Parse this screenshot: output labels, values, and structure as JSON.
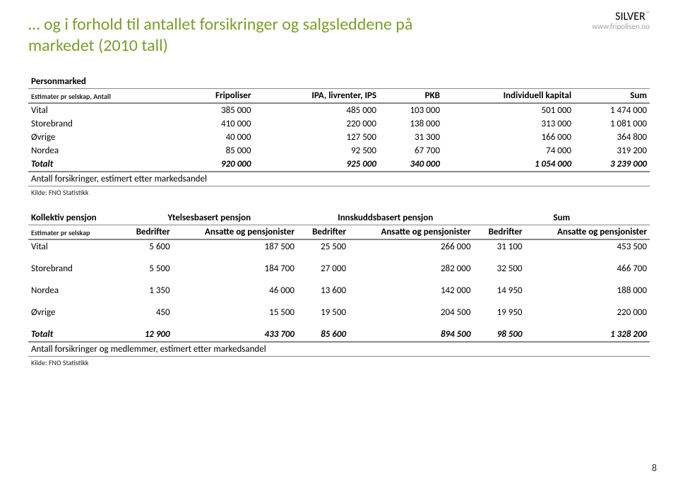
{
  "title": "… og i forhold til antallet forsikringer og salgsleddene på markedet  (2010 tall)",
  "logo": {
    "name": "SILVER",
    "url": "www.fripolisen.no"
  },
  "page_number": "8",
  "table1": {
    "section": "Personmarked",
    "sub": "Estimater pr selskap, Antall",
    "cols": [
      "Fripoliser",
      "IPA, livrenter, IPS",
      "PKB",
      "Individuell kapital",
      "Sum"
    ],
    "rows": [
      {
        "label": "Vital",
        "v": [
          "385 000",
          "485 000",
          "103 000",
          "501 000",
          "1 474 000"
        ]
      },
      {
        "label": "Storebrand",
        "v": [
          "410 000",
          "220 000",
          "138 000",
          "313 000",
          "1 081 000"
        ]
      },
      {
        "label": "Øvrige",
        "v": [
          "40 000",
          "127 500",
          "31 300",
          "166 000",
          "364 800"
        ]
      },
      {
        "label": "Nordea",
        "v": [
          "85 000",
          "92 500",
          "67 700",
          "74 000",
          "319 200"
        ]
      }
    ],
    "total": {
      "label": "Totalt",
      "v": [
        "920 000",
        "925 000",
        "340 000",
        "1 054 000",
        "3 239 000"
      ]
    },
    "note1": "Antall forsikringer, estimert etter markedsandel",
    "note2": "Kilde: FNO Statistikk"
  },
  "table2": {
    "section": "Kollektiv pensjon",
    "sub": "Estimater pr selskap",
    "groups": [
      "Ytelsesbasert pensjon",
      "Innskuddsbasert pensjon",
      "Sum"
    ],
    "gcol1": "Bedrifter",
    "gcol2": "Ansatte og pensjonister",
    "rows": [
      {
        "label": "Vital",
        "v": [
          "5 600",
          "187 500",
          "25 500",
          "266 000",
          "31 100",
          "453 500"
        ]
      },
      {
        "label": "Storebrand",
        "v": [
          "5 500",
          "184 700",
          "27 000",
          "282 000",
          "32 500",
          "466 700"
        ]
      },
      {
        "label": "Nordea",
        "v": [
          "1 350",
          "46 000",
          "13 600",
          "142 000",
          "14 950",
          "188 000"
        ]
      },
      {
        "label": "Øvrige",
        "v": [
          "450",
          "15 500",
          "19 500",
          "204 500",
          "19 950",
          "220 000"
        ]
      }
    ],
    "total": {
      "label": "Totalt",
      "v": [
        "12 900",
        "433 700",
        "85 600",
        "894 500",
        "98 500",
        "1 328 200"
      ]
    },
    "note1": "Antall forsikringer og medlemmer, estimert etter markedsandel",
    "note2": "Kilde: FNO Statistikk"
  }
}
